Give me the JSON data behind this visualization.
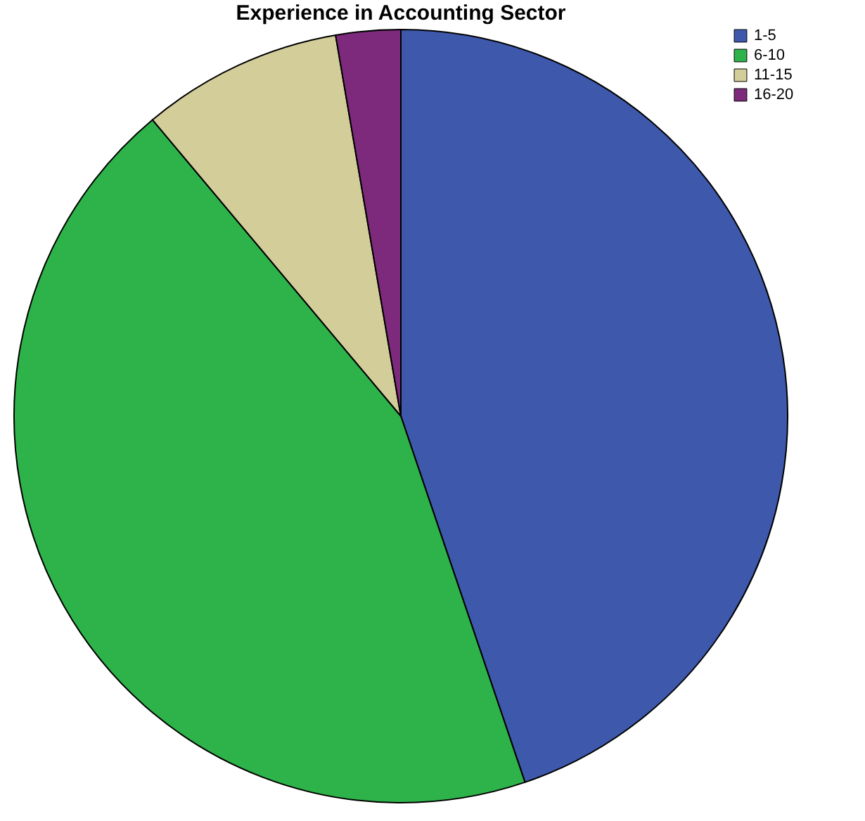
{
  "chart_data": {
    "type": "pie",
    "title": "Experience in Accounting Sector",
    "categories": [
      "1-5",
      "6-10",
      "11-15",
      "16-20"
    ],
    "values": [
      44.8,
      44.1,
      8.4,
      2.7
    ],
    "colors": [
      "#3e58ab",
      "#2eb34a",
      "#d3cd9a",
      "#7d2a7c"
    ],
    "legend": "top right"
  }
}
